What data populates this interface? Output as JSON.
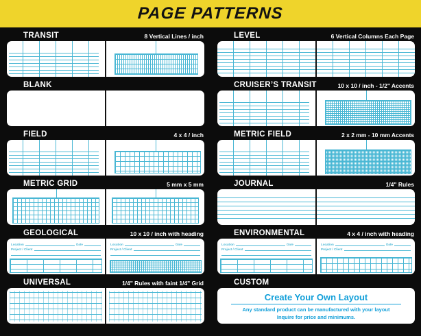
{
  "header": {
    "title": "PAGE PATTERNS"
  },
  "colors": {
    "banner_yellow": "#efd42b",
    "background_black": "#0c0c0c",
    "pattern_line_cyan": "#49b7d4",
    "custom_text_blue": "#129fd9",
    "page_white": "#ffffff",
    "title_text": "#ffffff"
  },
  "heading_labels": {
    "location": "Location",
    "date": "Date",
    "project_client": "Project / Client"
  },
  "custom_panel": {
    "title": "Create Your Own Layout",
    "line1": "Any standard product can be manufactured with your layout",
    "line2": "Inquire for price and minimums."
  },
  "sections": [
    {
      "name": "TRANSIT",
      "desc": "8 Vertical Lines / inch",
      "left_page": "vertical columns with ruled lines",
      "right_page": "fine vertical-line grid block"
    },
    {
      "name": "LEVEL",
      "desc": "6 Vertical Columns Each Page",
      "left_page": "6 vertical columns with rules",
      "right_page": "6 vertical columns with rules"
    },
    {
      "name": "BLANK",
      "desc": "",
      "left_page": "blank",
      "right_page": "blank"
    },
    {
      "name": "CRUISER’S TRANSIT",
      "desc": "10 x 10 / inch - 1/2\" Accents",
      "left_page": "vertical columns with ruled lines",
      "right_page": "10x10 fine grid block"
    },
    {
      "name": "FIELD",
      "desc": "4 x 4 / inch",
      "left_page": "vertical columns with ruled lines",
      "right_page": "4x4 grid block"
    },
    {
      "name": "METRIC FIELD",
      "desc": "2 x 2 mm - 10 mm Accents",
      "left_page": "vertical columns with ruled lines",
      "right_page": "2x2 mm dense grid block"
    },
    {
      "name": "METRIC GRID",
      "desc": "5 mm x 5 mm",
      "left_page": "5 mm grid block",
      "right_page": "5 mm grid block"
    },
    {
      "name": "JOURNAL",
      "desc": "1/4\" Rules",
      "left_page": "ruled lines",
      "right_page": "ruled lines"
    },
    {
      "name": "GEOLOGICAL",
      "desc": "10 x 10 / inch with heading",
      "left_page": "heading fields with column table",
      "right_page": "heading fields with 10x10 grid"
    },
    {
      "name": "ENVIRONMENTAL",
      "desc": "4 x 4 / inch with heading",
      "left_page": "heading fields with column table",
      "right_page": "heading fields with 4x4 grid"
    },
    {
      "name": "UNIVERSAL",
      "desc": "1/4\" Rules with faint 1/4\" Grid",
      "left_page": "rules with faint grid",
      "right_page": "rules with faint grid"
    },
    {
      "name": "CUSTOM",
      "desc": "",
      "left_page": "custom layout message",
      "right_page": ""
    }
  ]
}
